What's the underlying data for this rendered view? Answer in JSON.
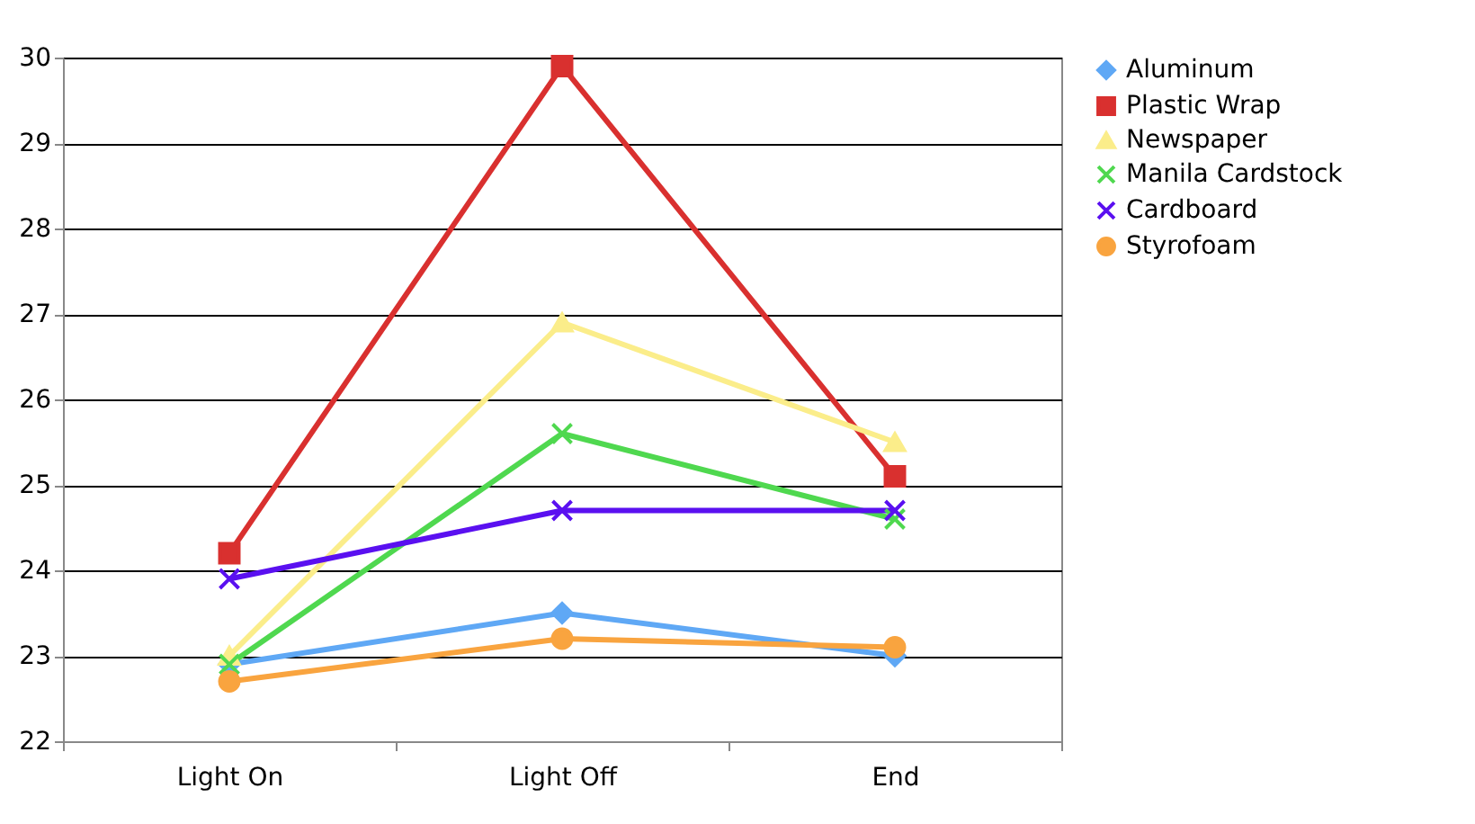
{
  "chart_data": {
    "type": "line",
    "categories": [
      "Light On",
      "Light Off",
      "End"
    ],
    "series": [
      {
        "name": "Aluminum",
        "color": "#5fa8f5",
        "marker": "diamond",
        "values": [
          22.9,
          23.5,
          23.0
        ]
      },
      {
        "name": "Plastic Wrap",
        "color": "#d9302f",
        "marker": "square",
        "values": [
          24.2,
          29.9,
          25.1
        ]
      },
      {
        "name": "Newspaper",
        "color": "#fbed8a",
        "marker": "triangle",
        "values": [
          23.0,
          26.9,
          25.5
        ]
      },
      {
        "name": "Manila Cardstock",
        "color": "#4fd84f",
        "marker": "cross",
        "values": [
          22.9,
          25.6,
          24.6
        ]
      },
      {
        "name": "Cardboard",
        "color": "#5a10f0",
        "marker": "cross",
        "values": [
          23.9,
          24.7,
          24.7
        ]
      },
      {
        "name": "Styrofoam",
        "color": "#f9a43f",
        "marker": "circle",
        "values": [
          22.7,
          23.2,
          23.1
        ]
      }
    ],
    "ylim": [
      22,
      30
    ],
    "yticks": [
      22,
      23,
      24,
      25,
      26,
      27,
      28,
      29,
      30
    ],
    "grid": "y",
    "legend": "right"
  }
}
